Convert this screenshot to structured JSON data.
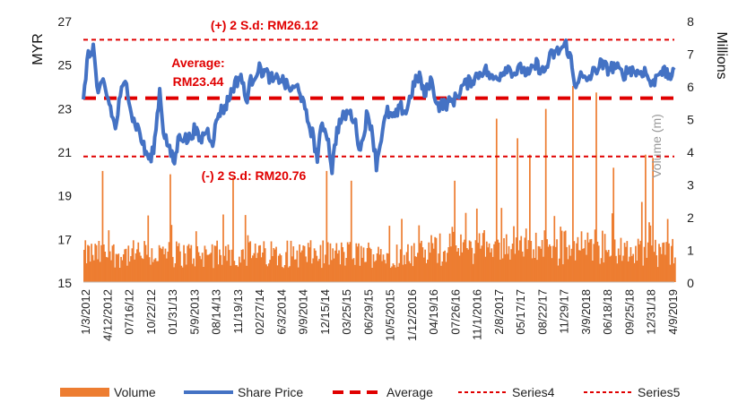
{
  "chart_data": {
    "type": "bar+line",
    "title": "",
    "y_left": {
      "label": "MYR",
      "range": [
        15,
        27
      ],
      "ticks": [
        "15",
        "17",
        "19",
        "21",
        "23",
        "25",
        "27"
      ]
    },
    "y_right": {
      "label": "Millions",
      "sublabel": "Volume (m)",
      "range": [
        0,
        8
      ],
      "ticks": [
        "0",
        "1",
        "2",
        "3",
        "4",
        "5",
        "6",
        "7",
        "8"
      ]
    },
    "x_tick_labels": [
      "1/3/2012",
      "4/12/2012",
      "07/16/12",
      "10/22/12",
      "01/31/13",
      "5/9/2013",
      "08/14/13",
      "11/19/13",
      "02/27/14",
      "6/3/2014",
      "9/9/2014",
      "12/15/14",
      "03/25/15",
      "06/29/15",
      "10/5/2015",
      "1/12/2016",
      "04/19/16",
      "07/26/16",
      "11/1/2016",
      "2/8/2017",
      "05/17/17",
      "08/22/17",
      "11/29/17",
      "3/9/2018",
      "06/18/18",
      "09/25/18",
      "12/31/18",
      "4/9/2019"
    ],
    "annotations": {
      "upper": "(+) 2 S.d: RM26.12",
      "average_line1": "Average:",
      "average_line2": "RM23.44",
      "lower": "(-) 2 S.d: RM20.76"
    },
    "reference_lines": {
      "average": 23.44,
      "upper": 26.12,
      "lower": 20.76
    },
    "share_price_keypoints": [
      [
        0,
        23.2
      ],
      [
        3,
        25.2
      ],
      [
        8,
        25.8
      ],
      [
        12,
        23.5
      ],
      [
        16,
        24.2
      ],
      [
        22,
        23.0
      ],
      [
        26,
        22.0
      ],
      [
        30,
        23.6
      ],
      [
        35,
        24.2
      ],
      [
        40,
        22.5
      ],
      [
        45,
        22.0
      ],
      [
        50,
        21.0
      ],
      [
        55,
        20.6
      ],
      [
        58,
        21.5
      ],
      [
        62,
        23.8
      ],
      [
        65,
        22.0
      ],
      [
        70,
        21.0
      ],
      [
        74,
        20.5
      ],
      [
        78,
        21.8
      ],
      [
        85,
        21.5
      ],
      [
        90,
        22.0
      ],
      [
        95,
        21.5
      ],
      [
        100,
        22.0
      ],
      [
        105,
        21.5
      ],
      [
        110,
        22.8
      ],
      [
        115,
        23.0
      ],
      [
        122,
        24.0
      ],
      [
        128,
        24.5
      ],
      [
        132,
        23.3
      ],
      [
        136,
        24.2
      ],
      [
        142,
        24.8
      ],
      [
        148,
        24.6
      ],
      [
        155,
        24.2
      ],
      [
        160,
        24.4
      ],
      [
        165,
        24.0
      ],
      [
        170,
        23.8
      ],
      [
        175,
        24.0
      ],
      [
        180,
        22.8
      ],
      [
        186,
        21.8
      ],
      [
        190,
        20.7
      ],
      [
        194,
        22.3
      ],
      [
        198,
        21.8
      ],
      [
        202,
        20.2
      ],
      [
        206,
        22.0
      ],
      [
        210,
        22.5
      ],
      [
        215,
        22.8
      ],
      [
        220,
        22.5
      ],
      [
        225,
        21.0
      ],
      [
        230,
        22.6
      ],
      [
        234,
        22.2
      ],
      [
        238,
        20.4
      ],
      [
        243,
        22.0
      ],
      [
        247,
        22.8
      ],
      [
        252,
        22.5
      ],
      [
        258,
        23.0
      ],
      [
        262,
        22.8
      ],
      [
        268,
        24.0
      ],
      [
        273,
        24.5
      ],
      [
        277,
        23.5
      ],
      [
        282,
        24.3
      ],
      [
        288,
        23.1
      ],
      [
        296,
        23.2
      ],
      [
        302,
        23.4
      ],
      [
        308,
        24.0
      ],
      [
        314,
        24.2
      ],
      [
        320,
        24.5
      ],
      [
        326,
        24.8
      ],
      [
        332,
        24.3
      ],
      [
        338,
        24.5
      ],
      [
        344,
        24.9
      ],
      [
        350,
        24.6
      ],
      [
        356,
        24.8
      ],
      [
        362,
        24.5
      ],
      [
        368,
        25.0
      ],
      [
        374,
        24.6
      ],
      [
        380,
        25.4
      ],
      [
        386,
        25.6
      ],
      [
        392,
        25.9
      ],
      [
        396,
        25.2
      ],
      [
        399,
        24.0
      ],
      [
        403,
        24.5
      ],
      [
        408,
        24.2
      ],
      [
        414,
        24.6
      ],
      [
        420,
        25.0
      ],
      [
        426,
        24.8
      ],
      [
        432,
        24.9
      ],
      [
        438,
        24.5
      ],
      [
        444,
        24.8
      ],
      [
        450,
        24.6
      ],
      [
        456,
        24.7
      ],
      [
        462,
        24.0
      ],
      [
        468,
        24.8
      ],
      [
        474,
        24.5
      ],
      [
        480,
        24.5
      ]
    ],
    "volume_profile_millions": {
      "baseline": 0.95,
      "spikes": [
        [
          15,
          3.4
        ],
        [
          70,
          3.3
        ],
        [
          121,
          3.2
        ],
        [
          197,
          3.4
        ],
        [
          217,
          3.1
        ],
        [
          301,
          3.1
        ],
        [
          335,
          5.0
        ],
        [
          352,
          4.4
        ],
        [
          362,
          3.9
        ],
        [
          375,
          5.3
        ],
        [
          397,
          6.0
        ],
        [
          416,
          5.8
        ],
        [
          430,
          3.5
        ],
        [
          456,
          3.9
        ],
        [
          462,
          3.8
        ]
      ]
    },
    "legend": [
      "Volume",
      "Share Price",
      "Average",
      "Series4",
      "Series5"
    ],
    "colors": {
      "volume": "#ed7d31",
      "share_price": "#4472c4",
      "reference": "#e00000",
      "text": "#222222"
    }
  }
}
